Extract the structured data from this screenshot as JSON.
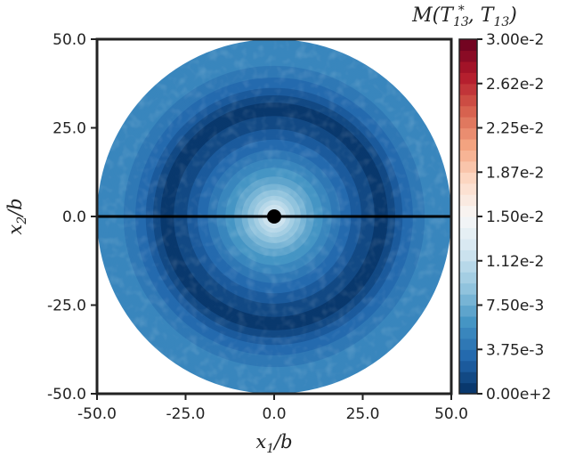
{
  "chart_data": {
    "type": "heatmap",
    "title": "",
    "colorbar_label": {
      "main": "M(T",
      "sub1": "13",
      "sup1": "*",
      "mid": ", T",
      "sub2": "13",
      "end": ")"
    },
    "xlabel": {
      "var": "x",
      "sub": "1",
      "rest": "/b"
    },
    "ylabel": {
      "var": "x",
      "sub": "2",
      "rest": "/b"
    },
    "xlim": [
      -50,
      50
    ],
    "ylim": [
      -50,
      50
    ],
    "x_ticks": [
      {
        "value": -50,
        "label": "-50.0"
      },
      {
        "value": -25,
        "label": "-25.0"
      },
      {
        "value": 0,
        "label": "0.0"
      },
      {
        "value": 25,
        "label": "25.0"
      },
      {
        "value": 50,
        "label": "50.0"
      }
    ],
    "y_ticks": [
      {
        "value": 50,
        "label": "50.0"
      },
      {
        "value": 25,
        "label": "25.0"
      },
      {
        "value": 0,
        "label": "0.0"
      },
      {
        "value": -25,
        "label": "-25.0"
      },
      {
        "value": -50,
        "label": "-50.0"
      }
    ],
    "colorbar": {
      "range": [
        0,
        0.03
      ],
      "colormap": "RdBu_r",
      "levels": 32,
      "ticks": [
        {
          "value": 0.03,
          "label": "3.00e-2"
        },
        {
          "value": 0.02625,
          "label": "2.62e-2"
        },
        {
          "value": 0.0225,
          "label": "2.25e-2"
        },
        {
          "value": 0.01875,
          "label": "1.87e-2"
        },
        {
          "value": 0.015,
          "label": "1.50e-2"
        },
        {
          "value": 0.01125,
          "label": "1.12e-2"
        },
        {
          "value": 0.0075,
          "label": "7.50e-3"
        },
        {
          "value": 0.00375,
          "label": "3.75e-3"
        },
        {
          "value": 0.0,
          "label": "0.00e+2"
        }
      ]
    },
    "domain_radius": 50,
    "radial_profile": [
      {
        "r": 0,
        "value": 0.0135
      },
      {
        "r": 3,
        "value": 0.0118
      },
      {
        "r": 6,
        "value": 0.0095
      },
      {
        "r": 10,
        "value": 0.0072
      },
      {
        "r": 15,
        "value": 0.0052
      },
      {
        "r": 20,
        "value": 0.0034
      },
      {
        "r": 25,
        "value": 0.0018
      },
      {
        "r": 29,
        "value": 0.0008
      },
      {
        "r": 32,
        "value": 0.0009
      },
      {
        "r": 37,
        "value": 0.003
      },
      {
        "r": 42,
        "value": 0.0046
      },
      {
        "r": 46,
        "value": 0.0052
      },
      {
        "r": 50,
        "value": 0.0056
      }
    ],
    "annotations": {
      "line": {
        "from": [
          -50,
          0
        ],
        "to": [
          50,
          0
        ],
        "color": "#000000"
      },
      "point": {
        "x": 0,
        "y": 0,
        "color": "#000000"
      }
    }
  }
}
